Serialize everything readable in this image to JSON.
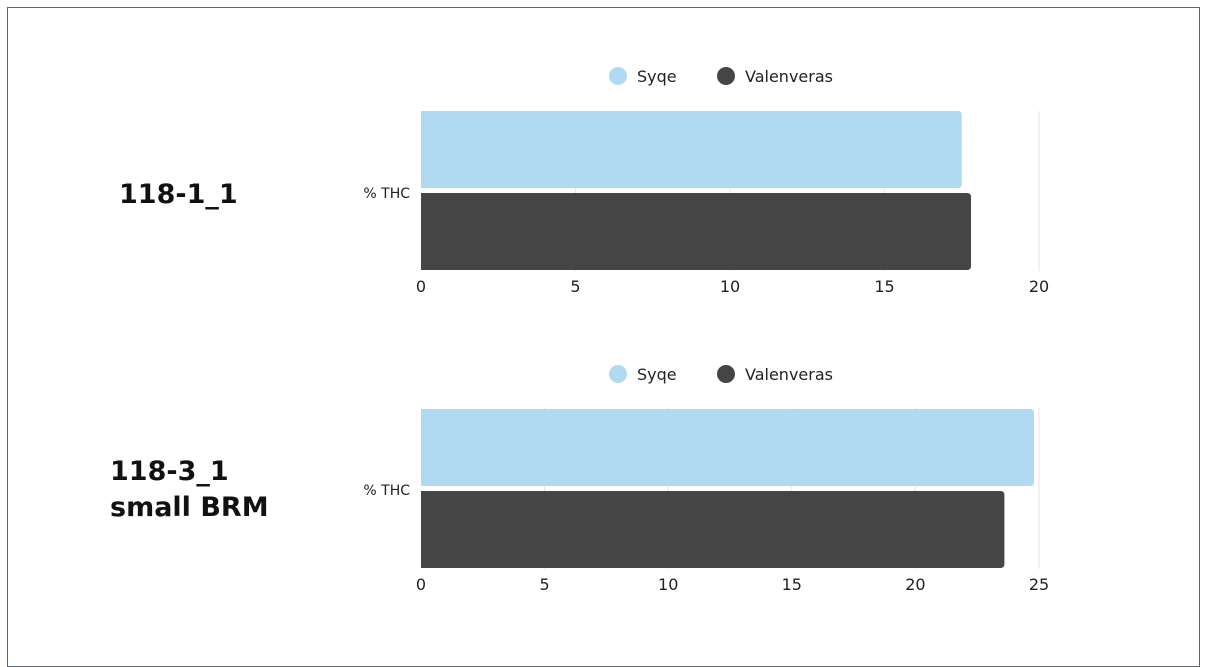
{
  "panels": [
    {
      "title_lines": [
        "118-1_1"
      ]
    },
    {
      "title_lines": [
        "118-3_1",
        "small BRM"
      ]
    }
  ],
  "colors": {
    "Syqe": "#b0d9f2",
    "Valenveras": "#454545",
    "grid": "#e4e4e4",
    "axis_text": "#222222",
    "frame": "#5a6878"
  },
  "chart_data": [
    {
      "type": "bar",
      "orientation": "horizontal",
      "categories": [
        "% THC"
      ],
      "series": [
        {
          "name": "Syqe",
          "values": [
            17.5
          ]
        },
        {
          "name": "Valenveras",
          "values": [
            17.8
          ]
        }
      ],
      "xlim": [
        0,
        20
      ],
      "xticks": [
        "0",
        "5",
        "10",
        "15",
        "20"
      ],
      "legend": "top-center",
      "grid": true
    },
    {
      "type": "bar",
      "orientation": "horizontal",
      "categories": [
        "% THC"
      ],
      "series": [
        {
          "name": "Syqe",
          "values": [
            24.8
          ]
        },
        {
          "name": "Valenveras",
          "values": [
            23.6
          ]
        }
      ],
      "xlim": [
        0,
        25
      ],
      "xticks": [
        "0",
        "5",
        "10",
        "15",
        "20",
        "25"
      ],
      "legend": "top-center",
      "grid": true
    }
  ]
}
